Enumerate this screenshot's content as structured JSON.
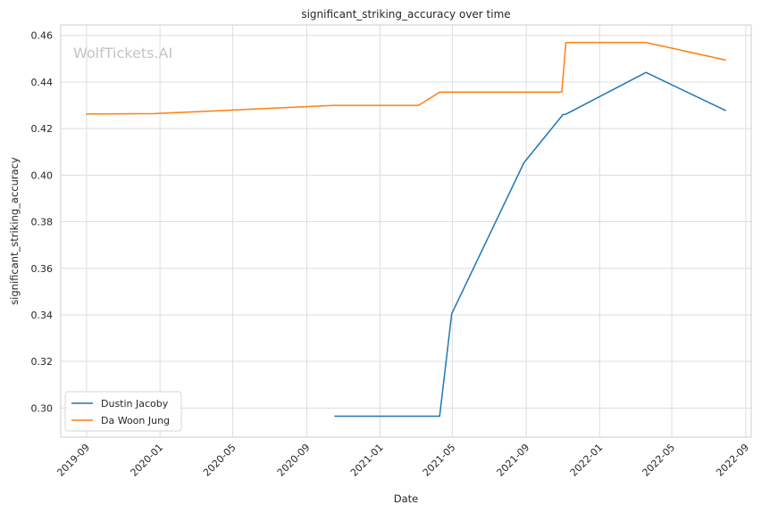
{
  "chart_data": {
    "type": "line",
    "title": "significant_striking_accuracy over time",
    "xlabel": "Date",
    "ylabel": "significant_striking_accuracy",
    "watermark": "WolfTickets.AI",
    "x_ticks": [
      "2019-09",
      "2020-01",
      "2020-05",
      "2020-09",
      "2021-01",
      "2021-05",
      "2021-09",
      "2022-01",
      "2022-05",
      "2022-09"
    ],
    "y_ticks": [
      "0.30",
      "0.32",
      "0.34",
      "0.36",
      "0.38",
      "0.40",
      "0.42",
      "0.44",
      "0.46"
    ],
    "xlim": [
      "2019-07-20",
      "2022-09-10"
    ],
    "ylim": [
      0.2875,
      0.4645
    ],
    "grid": true,
    "legend_position": "lower-left",
    "series": [
      {
        "name": "Dustin Jacoby",
        "color": "#1f77b4",
        "points": [
          {
            "x": "2020-10-17",
            "y": 0.2965
          },
          {
            "x": "2021-04-10",
            "y": 0.2965
          },
          {
            "x": "2021-04-30",
            "y": 0.3405
          },
          {
            "x": "2021-08-28",
            "y": 0.4053
          },
          {
            "x": "2021-11-01",
            "y": 0.426
          },
          {
            "x": "2021-11-06",
            "y": 0.4262
          },
          {
            "x": "2022-03-19",
            "y": 0.4441
          },
          {
            "x": "2022-07-30",
            "y": 0.4277
          }
        ]
      },
      {
        "name": "Da Woon Jung",
        "color": "#ff7f0e",
        "points": [
          {
            "x": "2019-08-31",
            "y": 0.4263
          },
          {
            "x": "2019-12-21",
            "y": 0.4264
          },
          {
            "x": "2020-10-17",
            "y": 0.43
          },
          {
            "x": "2021-03-06",
            "y": 0.43
          },
          {
            "x": "2021-04-10",
            "y": 0.4357
          },
          {
            "x": "2021-10-30",
            "y": 0.4357
          },
          {
            "x": "2021-11-06",
            "y": 0.457
          },
          {
            "x": "2022-03-19",
            "y": 0.457
          },
          {
            "x": "2022-07-30",
            "y": 0.4494
          }
        ]
      }
    ]
  }
}
